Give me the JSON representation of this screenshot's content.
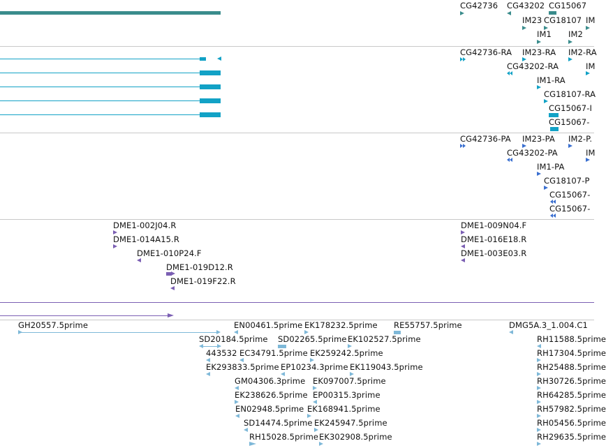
{
  "colors": {
    "gene": "#3a8c8c",
    "transcript": "#12a2c6",
    "protein": "#3a6fd0",
    "clone": "#7b5fb3",
    "est": "#7eb8d8",
    "divider": "#c8c8c8"
  },
  "tracks": {
    "genes": {
      "name": "gene-track",
      "labels": [
        "CG42736",
        "CG43202",
        "CG15067",
        "IM23",
        "CG18107",
        "IM",
        "IM1",
        "IM2"
      ]
    },
    "transcripts": {
      "name": "transcript-track",
      "labels": [
        "CG42736-RA",
        "IM23-RA",
        "IM2-RA",
        "CG43202-RA",
        "IM",
        "IM1-RA",
        "CG18107-RA",
        "CG15067-I",
        "CG15067-"
      ]
    },
    "proteins": {
      "name": "protein-track",
      "labels": [
        "CG42736-PA",
        "IM23-PA",
        "IM2-P.",
        "CG43202-PA",
        "IM",
        "IM1-PA",
        "CG18107-P",
        "CG15067-",
        "CG15067-"
      ]
    },
    "clones": {
      "name": "clone-end-track",
      "labels": [
        "DME1-002J04.R",
        "DME1-014A15.R",
        "DME1-010P24.F",
        "DME1-019D12.R",
        "DME1-019F22.R",
        "DME1-009N04.F",
        "DME1-016E18.R",
        "DME1-003E03.R"
      ]
    },
    "ests": {
      "name": "est-track",
      "labels": [
        "GH20557.5prime",
        "EN00461.5prime",
        "EK178232.5prime",
        "RE55757.5prime",
        "DMG5A.3_1.004.C1",
        "SD20184.5prime",
        "SD02265.5prime",
        "EK102527.5prime",
        "RH11588.5prime",
        "443532",
        "EC34791.5prime",
        "EK259242.5prime",
        "RH17304.5prime",
        "EK293833.5prime",
        "EP10234.3prime",
        "EK119043.5prime",
        "RH25488.5prime",
        "GM04306.3prime",
        "EK097007.5prime",
        "RH30726.5prime",
        "EK238626.5prime",
        "EP00315.3prime",
        "RH64285.5prime",
        "EN02948.5prime",
        "EK168941.5prime",
        "RH57982.5prime",
        "SD14474.5prime",
        "EK245947.5prime",
        "RH05456.5prime",
        "RH15028.5prime",
        "EK302908.5prime",
        "RH29635.5prime"
      ]
    }
  }
}
